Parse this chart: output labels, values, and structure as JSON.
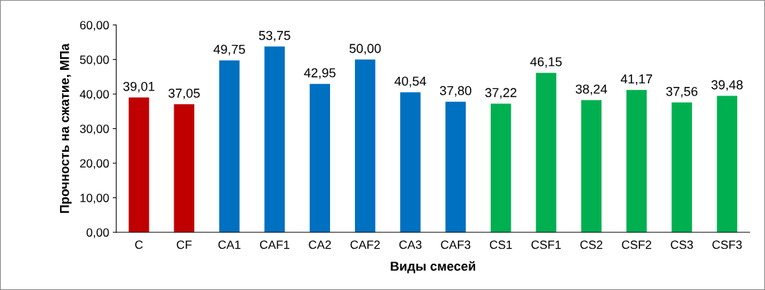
{
  "chart_data": {
    "type": "bar",
    "xlabel": "Виды смесей",
    "ylabel": "Прочность на сжатие, МПа",
    "categories": [
      "C",
      "CF",
      "CA1",
      "CAF1",
      "CA2",
      "CAF2",
      "CA3",
      "CAF3",
      "CS1",
      "CSF1",
      "CS2",
      "CSF2",
      "CS3",
      "CSF3"
    ],
    "values": [
      39.01,
      37.05,
      49.75,
      53.75,
      42.95,
      50.0,
      40.54,
      37.8,
      37.22,
      46.15,
      38.24,
      41.17,
      37.56,
      39.48
    ],
    "value_labels": [
      "39,01",
      "37,05",
      "49,75",
      "53,75",
      "42,95",
      "50,00",
      "40,54",
      "37,80",
      "37,22",
      "46,15",
      "38,24",
      "41,17",
      "37,56",
      "39,48"
    ],
    "colors": [
      "#c00000",
      "#c00000",
      "#0070c0",
      "#0070c0",
      "#0070c0",
      "#0070c0",
      "#0070c0",
      "#0070c0",
      "#00b050",
      "#00b050",
      "#00b050",
      "#00b050",
      "#00b050",
      "#00b050"
    ],
    "ylim": [
      0,
      60
    ],
    "yticks": [
      {
        "value": 0,
        "label": "0,00"
      },
      {
        "value": 10,
        "label": "10,00"
      },
      {
        "value": 20,
        "label": "20,00"
      },
      {
        "value": 30,
        "label": "30,00"
      },
      {
        "value": 40,
        "label": "40,00"
      },
      {
        "value": 50,
        "label": "50,00"
      },
      {
        "value": 60,
        "label": "60,00"
      }
    ],
    "grid": false,
    "legend": false
  }
}
